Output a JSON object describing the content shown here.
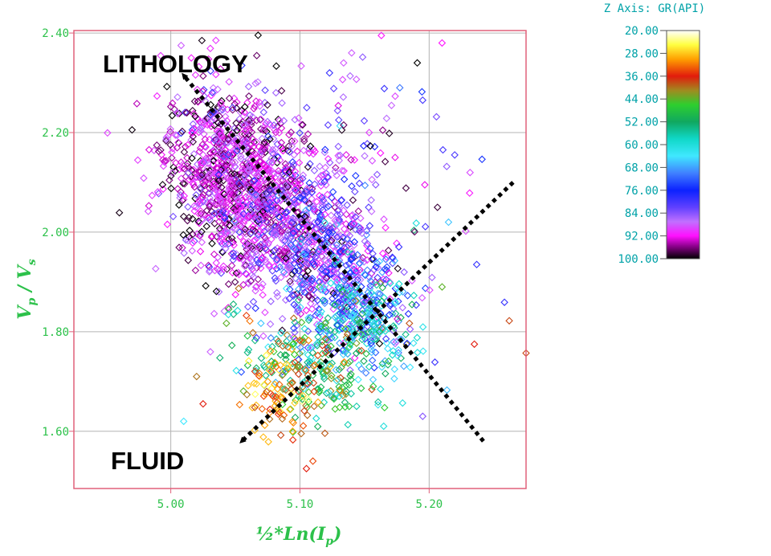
{
  "chart_data": {
    "type": "scatter",
    "xlabel": "½*Ln(I",
    "xlabel_sub": "p",
    "xlabel_close": ")",
    "ylabel_vp": "V",
    "ylabel_vp_sub": "p",
    "ylabel_slash": " / ",
    "ylabel_vs": "V",
    "ylabel_vs_sub": "s",
    "xlim": [
      4.925,
      5.275
    ],
    "ylim": [
      1.485,
      2.405
    ],
    "x_ticks": [
      5.0,
      5.1,
      5.2
    ],
    "x_tick_labels": [
      "5.00",
      "5.10",
      "5.20"
    ],
    "y_ticks": [
      1.6,
      1.8,
      2.0,
      2.2,
      2.4
    ],
    "y_tick_labels": [
      "1.60",
      "1.80",
      "2.00",
      "2.20",
      "2.40"
    ],
    "grid": true,
    "marker": "open-diamond",
    "color_axis": {
      "title": "Z Axis: GR(API)",
      "range": [
        20,
        100
      ],
      "tick_values": [
        20,
        28,
        36,
        44,
        52,
        60,
        68,
        76,
        84,
        92,
        100
      ],
      "tick_labels": [
        "20.00",
        "28.00",
        "36.00",
        "44.00",
        "52.00",
        "60.00",
        "68.00",
        "76.00",
        "84.00",
        "92.00",
        "100.00"
      ],
      "colormap": [
        [
          20,
          "#ffffff"
        ],
        [
          25,
          "#ffff40"
        ],
        [
          30,
          "#ffa000"
        ],
        [
          36,
          "#e21b0c"
        ],
        [
          41,
          "#a08a20"
        ],
        [
          46,
          "#2ecf2e"
        ],
        [
          52,
          "#10a860"
        ],
        [
          58,
          "#10d8c8"
        ],
        [
          64,
          "#40e8ff"
        ],
        [
          70,
          "#4080ff"
        ],
        [
          76,
          "#0c22ff"
        ],
        [
          82,
          "#6040ff"
        ],
        [
          87,
          "#c070ff"
        ],
        [
          92,
          "#ff10ff"
        ],
        [
          96,
          "#800080"
        ],
        [
          100,
          "#000000"
        ]
      ]
    },
    "points": {
      "note_clusters": [
        {
          "cx": 5.045,
          "cy": 2.11,
          "sx": 0.025,
          "sy": 0.09,
          "n": 900,
          "gr_mean": 92,
          "gr_sd": 5
        },
        {
          "cx": 5.09,
          "cy": 2.02,
          "sx": 0.03,
          "sy": 0.09,
          "n": 700,
          "gr_mean": 88,
          "gr_sd": 6
        },
        {
          "cx": 5.13,
          "cy": 1.92,
          "sx": 0.025,
          "sy": 0.07,
          "n": 350,
          "gr_mean": 80,
          "gr_sd": 9
        },
        {
          "cx": 5.15,
          "cy": 1.82,
          "sx": 0.02,
          "sy": 0.05,
          "n": 250,
          "gr_mean": 62,
          "gr_sd": 10
        },
        {
          "cx": 5.105,
          "cy": 1.73,
          "sx": 0.025,
          "sy": 0.05,
          "n": 230,
          "gr_mean": 50,
          "gr_sd": 9
        },
        {
          "cx": 5.085,
          "cy": 1.68,
          "sx": 0.015,
          "sy": 0.04,
          "n": 90,
          "gr_mean": 32,
          "gr_sd": 5
        },
        {
          "cx": 5.14,
          "cy": 2.18,
          "sx": 0.05,
          "sy": 0.13,
          "n": 110,
          "gr_mean": 88,
          "gr_sd": 8
        }
      ],
      "outliers": [
        {
          "x": 5.262,
          "y": 1.822,
          "gr": 38
        },
        {
          "x": 5.275,
          "y": 1.757,
          "gr": 38
        },
        {
          "x": 5.235,
          "y": 1.775,
          "gr": 36
        },
        {
          "x": 5.21,
          "y": 1.89,
          "gr": 44
        },
        {
          "x": 5.195,
          "y": 1.63,
          "gr": 84
        },
        {
          "x": 5.008,
          "y": 2.375,
          "gr": 88
        },
        {
          "x": 5.163,
          "y": 2.395,
          "gr": 92
        },
        {
          "x": 5.21,
          "y": 2.38,
          "gr": 92
        },
        {
          "x": 5.14,
          "y": 2.36,
          "gr": 88
        },
        {
          "x": 5.195,
          "y": 2.265,
          "gr": 80
        },
        {
          "x": 5.01,
          "y": 1.62,
          "gr": 64
        },
        {
          "x": 5.105,
          "y": 1.525,
          "gr": 36
        },
        {
          "x": 5.11,
          "y": 1.54,
          "gr": 34
        },
        {
          "x": 5.02,
          "y": 1.71,
          "gr": 40
        },
        {
          "x": 5.025,
          "y": 1.655,
          "gr": 36
        },
        {
          "x": 5.19,
          "y": 2.018,
          "gr": 60
        },
        {
          "x": 5.215,
          "y": 2.02,
          "gr": 66
        }
      ]
    },
    "annotations": [
      {
        "text": "LITHOLOGY",
        "arrow_from": [
          5.242,
          1.58
        ],
        "arrow_to": [
          5.01,
          2.315
        ]
      },
      {
        "text": "FLUID",
        "arrow_from": [
          5.265,
          2.1
        ],
        "arrow_to": [
          5.055,
          1.58
        ]
      }
    ]
  },
  "colors": {
    "frame": "#e0607a",
    "grid": "#b4b4b4",
    "tick_text": "#2cc14a",
    "colorbar_text": "#00a2a8",
    "annotation_line": "#000000"
  }
}
